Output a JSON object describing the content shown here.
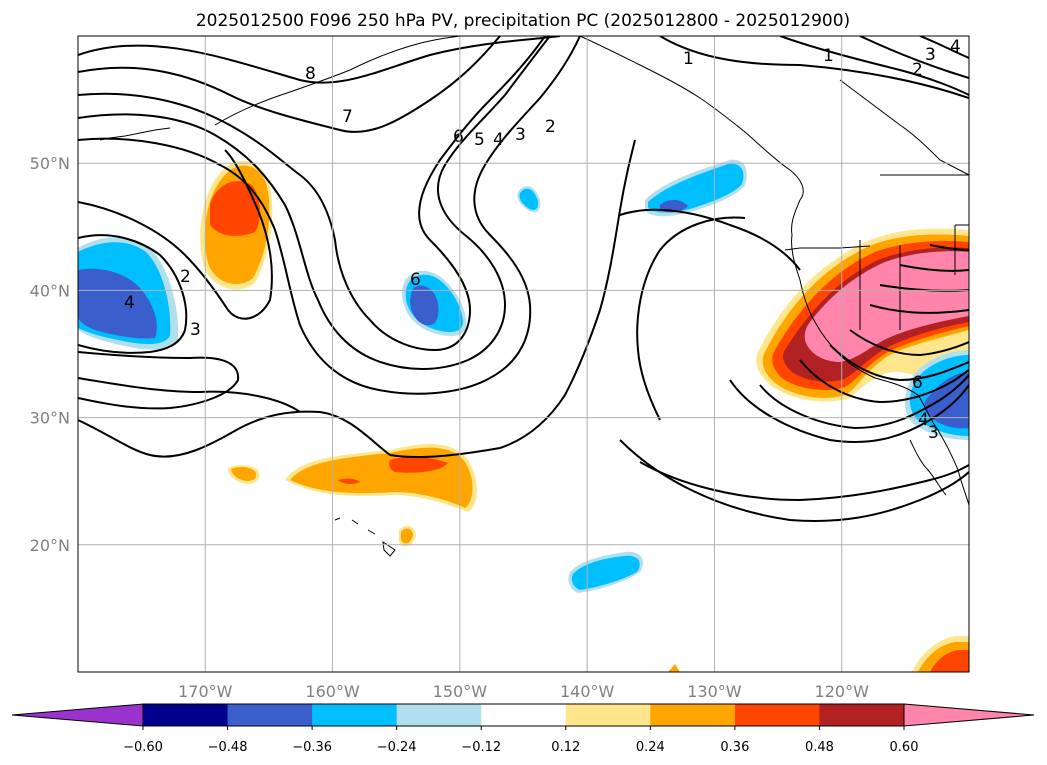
{
  "title": "2025012500 F096 250 hPa PV, precipitation PC (2025012800 - 2025012900)",
  "colors": {
    "cmap": [
      "#9a32cd",
      "#00008b",
      "#3a5fcd",
      "#00bfff",
      "#b2dfee",
      "#ffffff",
      "#ffe68c",
      "#ffa500",
      "#ff4500",
      "#b22222",
      "#ff85ad"
    ],
    "grid": "#b0b0b0",
    "coast": "#000000",
    "contour": "#000000",
    "tick_label": "#808080"
  },
  "map": {
    "projection": "PlateCarree",
    "lon_min": -180,
    "lon_max": -110,
    "lat_min": 10,
    "lat_max": 60,
    "lat_ticks": [
      {
        "value": 50,
        "label": "50°N"
      },
      {
        "value": 40,
        "label": "40°N"
      },
      {
        "value": 30,
        "label": "30°N"
      },
      {
        "value": 20,
        "label": "20°N"
      }
    ],
    "lon_ticks": [
      {
        "value": -170,
        "label": "170°W"
      },
      {
        "value": -160,
        "label": "160°W"
      },
      {
        "value": -150,
        "label": "150°W"
      },
      {
        "value": -140,
        "label": "140°W"
      },
      {
        "value": -130,
        "label": "130°W"
      },
      {
        "value": -120,
        "label": "120°W"
      }
    ]
  },
  "colorbar": {
    "extend": "both",
    "tick_labels": [
      "−0.60",
      "−0.48",
      "−0.36",
      "−0.24",
      "−0.12",
      "0.12",
      "0.24",
      "0.36",
      "0.48",
      "0.60"
    ]
  },
  "pv_contour_labels": [
    "1",
    "1",
    "2",
    "2",
    "2",
    "3",
    "3",
    "3",
    "4",
    "4",
    "4",
    "5",
    "6",
    "6",
    "6",
    "7",
    "8",
    "3",
    "4"
  ],
  "precip_features": [
    {
      "region": "Pacific Northwest / Northern California",
      "sign": "positive",
      "max_class": "0.60"
    },
    {
      "region": "Central North Pacific near 168W 46N",
      "sign": "positive",
      "max_class": "0.48"
    },
    {
      "region": "Hawaii subtropical band",
      "sign": "positive",
      "max_class": "0.48"
    },
    {
      "region": "Dateline near 42N",
      "sign": "negative",
      "max_class": "-0.48"
    },
    {
      "region": "North Pacific near 152W 39N",
      "sign": "negative",
      "max_class": "-0.48"
    },
    {
      "region": "Gulf of Alaska near 133W 48N",
      "sign": "negative",
      "max_class": "-0.48"
    },
    {
      "region": "Southern California / Baja",
      "sign": "negative",
      "max_class": "-0.48"
    },
    {
      "region": "Tropical Pacific near 138W 18N",
      "sign": "negative",
      "max_class": "-0.36"
    }
  ]
}
